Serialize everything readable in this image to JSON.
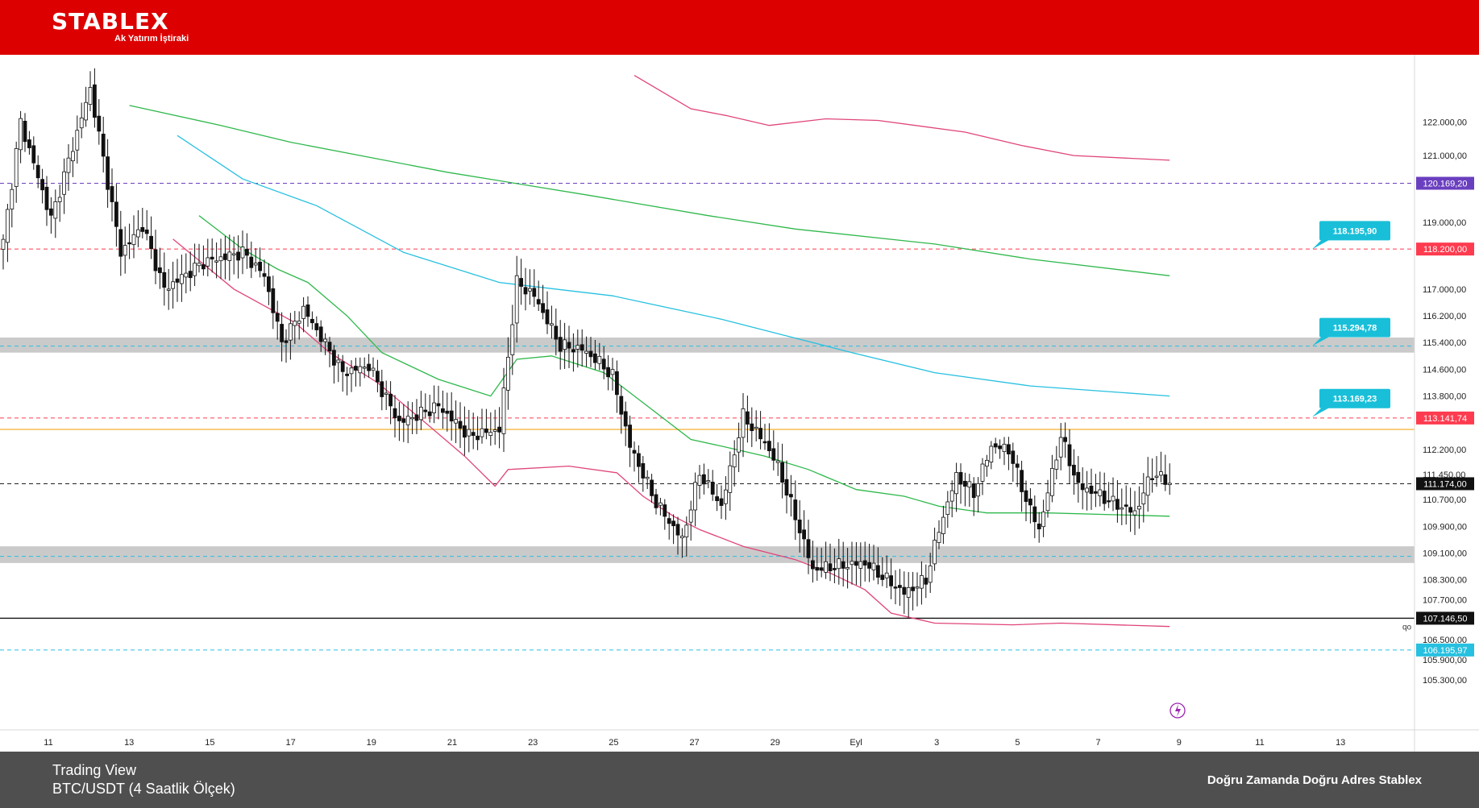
{
  "header": {
    "logo_text": "STABLEX",
    "logo_subtitle": "Ak Yatırım İştiraki",
    "background": "#dc0000"
  },
  "footer": {
    "title": "Trading View",
    "subtitle": "BTC/USDT (4 Saatlik Ölçek)",
    "slogan": "Doğru Zamanda Doğru Adres Stablex",
    "background": "#4f4f4f"
  },
  "chart_data": {
    "type": "candlestick",
    "title": "",
    "xlabel": "",
    "ylabel": "",
    "ylim": [
      105100,
      122400
    ],
    "x_ticks": [
      "11",
      "13",
      "15",
      "17",
      "19",
      "21",
      "23",
      "25",
      "27",
      "29",
      "Eyl",
      "3",
      "5",
      "7",
      "9",
      "11",
      "13"
    ],
    "y_ticks": [
      "122.000,00",
      "121.000,00",
      "119.000,00",
      "117.000,00",
      "116.200,00",
      "115.400,00",
      "114.600,00",
      "113.800,00",
      "112.200,00",
      "111.450,00",
      "110.700,00",
      "109.900,00",
      "109.100,00",
      "108.300,00",
      "107.700,00",
      "106.500,00",
      "105.900,00",
      "105.300,00"
    ],
    "y_tick_values": [
      122000,
      121000,
      119000,
      117000,
      116200,
      115400,
      114600,
      113800,
      112200,
      111450,
      110700,
      109900,
      109100,
      108300,
      107700,
      106500,
      105900,
      105300
    ],
    "candle_keyframes": [
      [
        118400,
        0
      ],
      [
        122000,
        4
      ],
      [
        119100,
        11
      ],
      [
        123000,
        20
      ],
      [
        118100,
        27
      ],
      [
        118900,
        32
      ],
      [
        117000,
        37
      ],
      [
        117800,
        46
      ],
      [
        118100,
        55
      ],
      [
        117400,
        60
      ],
      [
        115400,
        64
      ],
      [
        116400,
        69
      ],
      [
        114500,
        78
      ],
      [
        114700,
        84
      ],
      [
        113000,
        91
      ],
      [
        113500,
        100
      ],
      [
        112600,
        107
      ],
      [
        112800,
        114
      ],
      [
        117200,
        118
      ],
      [
        116800,
        122
      ],
      [
        115300,
        128
      ],
      [
        115200,
        133
      ],
      [
        114800,
        137
      ],
      [
        114400,
        140
      ],
      [
        112300,
        144
      ],
      [
        110600,
        150
      ],
      [
        109500,
        156
      ],
      [
        111500,
        160
      ],
      [
        110500,
        165
      ],
      [
        113200,
        170
      ],
      [
        112400,
        175
      ],
      [
        111700,
        178
      ],
      [
        109800,
        183
      ],
      [
        108600,
        186
      ],
      [
        108700,
        191
      ],
      [
        108800,
        198
      ],
      [
        108300,
        203
      ],
      [
        107900,
        207
      ],
      [
        108300,
        212
      ],
      [
        109800,
        215
      ],
      [
        111400,
        219
      ],
      [
        110900,
        223
      ],
      [
        112300,
        227
      ],
      [
        112200,
        231
      ],
      [
        110700,
        235
      ],
      [
        109800,
        238
      ],
      [
        112600,
        243
      ],
      [
        111100,
        247
      ],
      [
        110900,
        251
      ],
      [
        110600,
        255
      ],
      [
        110300,
        260
      ],
      [
        111500,
        264
      ],
      [
        111200,
        268
      ]
    ],
    "series": [
      {
        "name": "",
        "color": "#e0457b",
        "values": [
          [
            123400,
            145
          ],
          [
            122400,
            158
          ],
          [
            122200,
            166
          ],
          [
            121900,
            176
          ],
          [
            122100,
            189
          ],
          [
            122050,
            201
          ],
          [
            121700,
            221
          ],
          [
            121300,
            234
          ],
          [
            121000,
            246
          ],
          [
            120860,
            268
          ]
        ]
      },
      {
        "name": "",
        "color": "#2fb84b",
        "values": [
          [
            122500,
            29
          ],
          [
            121900,
            50
          ],
          [
            121400,
            66
          ],
          [
            120500,
            102
          ],
          [
            119800,
            135
          ],
          [
            119200,
            162
          ],
          [
            118800,
            182
          ],
          [
            118350,
            214
          ],
          [
            117900,
            236
          ],
          [
            117400,
            268
          ]
        ]
      },
      {
        "name": "",
        "color": "#27c0e0",
        "values": [
          [
            121600,
            40
          ],
          [
            120300,
            55
          ],
          [
            119500,
            72
          ],
          [
            118100,
            92
          ],
          [
            117200,
            114
          ],
          [
            116800,
            140
          ],
          [
            116100,
            165
          ],
          [
            115600,
            180
          ],
          [
            115100,
            195
          ],
          [
            114500,
            214
          ],
          [
            114100,
            236
          ],
          [
            113800,
            268
          ]
        ]
      },
      {
        "name": "",
        "color": "#2fb84b",
        "values": [
          [
            119200,
            45
          ],
          [
            118200,
            55
          ],
          [
            117600,
            63
          ],
          [
            117200,
            70
          ],
          [
            116200,
            79
          ],
          [
            115100,
            87
          ],
          [
            114300,
            100
          ],
          [
            113800,
            112
          ],
          [
            114900,
            118
          ],
          [
            115000,
            126
          ],
          [
            114500,
            138
          ],
          [
            113500,
            148
          ],
          [
            112500,
            158
          ],
          [
            112300,
            165
          ],
          [
            112000,
            175
          ],
          [
            111600,
            185
          ],
          [
            111000,
            196
          ],
          [
            110800,
            207
          ],
          [
            110500,
            215
          ],
          [
            110300,
            226
          ],
          [
            110300,
            240
          ],
          [
            110200,
            268
          ]
        ]
      },
      {
        "name": "",
        "color": "#e0457b",
        "values": [
          [
            118500,
            39
          ],
          [
            117000,
            53
          ],
          [
            116000,
            67
          ],
          [
            115100,
            75
          ],
          [
            114200,
            86
          ],
          [
            113000,
            97
          ],
          [
            112000,
            106
          ],
          [
            111100,
            113
          ],
          [
            111600,
            116
          ],
          [
            111700,
            130
          ],
          [
            111500,
            141
          ],
          [
            110800,
            147
          ],
          [
            110200,
            154
          ],
          [
            109800,
            160
          ],
          [
            109300,
            170
          ],
          [
            108900,
            182
          ],
          [
            108500,
            190
          ],
          [
            108000,
            198
          ],
          [
            107300,
            204
          ],
          [
            107000,
            214
          ],
          [
            106950,
            232
          ],
          [
            107000,
            243
          ],
          [
            106900,
            268
          ]
        ]
      }
    ],
    "horizontal_lines": [
      {
        "value": 120169.2,
        "label": "120.169,20",
        "color": "#6a3fbf"
      },
      {
        "value": 118200.0,
        "label": "118.200,00",
        "color": "#ff3b4f"
      },
      {
        "value": 115294.78,
        "label": "",
        "color": "#27c0e0"
      },
      {
        "value": 113141.74,
        "label": "113.141,74",
        "color": "#ff3b4f"
      },
      {
        "value": 112800.0,
        "label": "",
        "color": "#f5b742"
      },
      {
        "value": 111174.0,
        "label": "111.174,00",
        "color": "#1f1f1f"
      },
      {
        "value": 109000.0,
        "label": "",
        "color": "#27c0e0"
      },
      {
        "value": 107146.5,
        "label": "107.146,50",
        "color": "#111111"
      },
      {
        "value": 106195.97,
        "label": "106.195,97",
        "color": "#27c0e0"
      }
    ],
    "zones": [
      {
        "from": 115100,
        "to": 115550,
        "color": "#c4c4c4"
      },
      {
        "from": 108800,
        "to": 109300,
        "color": "#c4c4c4"
      }
    ],
    "callouts": [
      {
        "label": "118.195,90",
        "value": 118195.9,
        "color": "#19bfd8"
      },
      {
        "label": "115.294,78",
        "value": 115294.78,
        "color": "#19bfd8"
      },
      {
        "label": "113.169,23",
        "value": 113169.23,
        "color": "#19bfd8"
      }
    ],
    "pane_tag": "qo"
  }
}
